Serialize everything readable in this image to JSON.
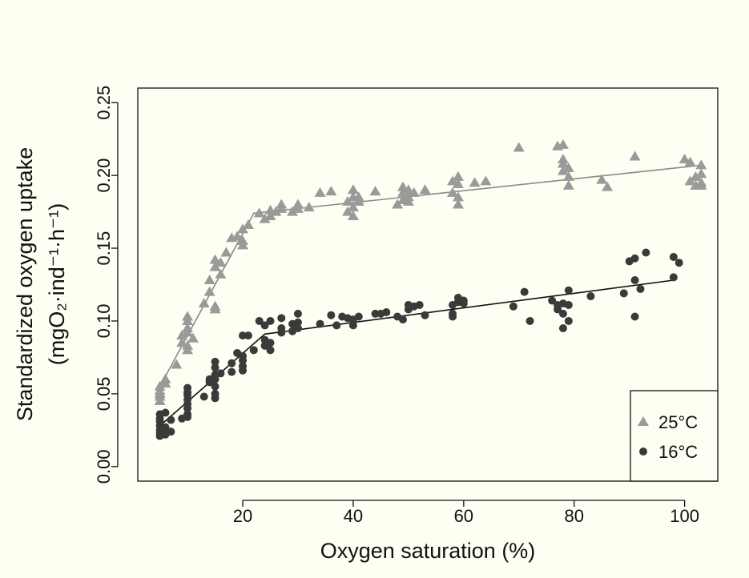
{
  "chart_data": {
    "type": "scatter",
    "xlabel": "Oxygen saturation (%)",
    "ylabel_line1": "Standardized oxygen uptake",
    "ylabel_line2": "(mgO₂·ind⁻¹·h⁻¹)",
    "xlim": [
      1,
      106
    ],
    "ylim": [
      -0.01,
      0.26
    ],
    "x_ticks": [
      20,
      40,
      60,
      80,
      100
    ],
    "y_ticks": [
      "0.00",
      "0.05",
      "0.10",
      "0.15",
      "0.20",
      "0.25"
    ],
    "legend_position": "bottom-right",
    "grid": false,
    "series": [
      {
        "name": "25°C",
        "marker": "triangle",
        "color": "#9a9a9a",
        "points": [
          [
            5,
            0.048
          ],
          [
            5,
            0.05
          ],
          [
            5,
            0.052
          ],
          [
            5,
            0.055
          ],
          [
            6,
            0.057
          ],
          [
            6,
            0.06
          ],
          [
            5,
            0.045
          ],
          [
            8,
            0.07
          ],
          [
            9,
            0.085
          ],
          [
            9,
            0.09
          ],
          [
            10,
            0.08
          ],
          [
            10,
            0.092
          ],
          [
            10,
            0.095
          ],
          [
            10,
            0.1
          ],
          [
            10,
            0.103
          ],
          [
            11,
            0.088
          ],
          [
            10,
            0.083
          ],
          [
            13,
            0.112
          ],
          [
            14,
            0.12
          ],
          [
            14,
            0.128
          ],
          [
            15,
            0.137
          ],
          [
            15,
            0.142
          ],
          [
            15,
            0.108
          ],
          [
            15,
            0.11
          ],
          [
            16,
            0.14
          ],
          [
            16,
            0.132
          ],
          [
            17,
            0.147
          ],
          [
            18,
            0.157
          ],
          [
            19,
            0.158
          ],
          [
            20,
            0.155
          ],
          [
            20,
            0.152
          ],
          [
            20,
            0.163
          ],
          [
            21,
            0.166
          ],
          [
            23,
            0.174
          ],
          [
            24,
            0.17
          ],
          [
            25,
            0.172
          ],
          [
            25,
            0.176
          ],
          [
            26,
            0.175
          ],
          [
            27,
            0.177
          ],
          [
            27,
            0.18
          ],
          [
            29,
            0.175
          ],
          [
            30,
            0.177
          ],
          [
            30,
            0.18
          ],
          [
            32,
            0.178
          ],
          [
            34,
            0.188
          ],
          [
            36,
            0.189
          ],
          [
            39,
            0.182
          ],
          [
            39,
            0.175
          ],
          [
            40,
            0.172
          ],
          [
            40,
            0.178
          ],
          [
            40,
            0.185
          ],
          [
            40,
            0.19
          ],
          [
            41,
            0.185
          ],
          [
            41,
            0.182
          ],
          [
            44,
            0.189
          ],
          [
            48,
            0.18
          ],
          [
            49,
            0.183
          ],
          [
            49,
            0.188
          ],
          [
            49,
            0.192
          ],
          [
            50,
            0.182
          ],
          [
            50,
            0.185
          ],
          [
            50,
            0.19
          ],
          [
            51,
            0.188
          ],
          [
            53,
            0.19
          ],
          [
            58,
            0.188
          ],
          [
            58,
            0.196
          ],
          [
            59,
            0.199
          ],
          [
            59,
            0.194
          ],
          [
            59,
            0.185
          ],
          [
            59,
            0.18
          ],
          [
            62,
            0.195
          ],
          [
            64,
            0.196
          ],
          [
            70,
            0.219
          ],
          [
            77,
            0.22
          ],
          [
            78,
            0.221
          ],
          [
            78,
            0.211
          ],
          [
            78,
            0.208
          ],
          [
            78,
            0.203
          ],
          [
            79,
            0.205
          ],
          [
            79,
            0.199
          ],
          [
            79,
            0.193
          ],
          [
            85,
            0.197
          ],
          [
            86,
            0.192
          ],
          [
            91,
            0.213
          ],
          [
            100,
            0.211
          ],
          [
            101,
            0.209
          ],
          [
            101,
            0.196
          ],
          [
            102,
            0.193
          ],
          [
            102,
            0.199
          ],
          [
            103,
            0.195
          ],
          [
            103,
            0.193
          ],
          [
            103,
            0.207
          ],
          [
            103,
            0.201
          ]
        ]
      },
      {
        "name": "16°C",
        "marker": "circle",
        "color": "#3a3a3a",
        "points": [
          [
            5,
            0.021
          ],
          [
            5,
            0.023
          ],
          [
            5,
            0.025
          ],
          [
            5,
            0.028
          ],
          [
            5,
            0.031
          ],
          [
            5,
            0.033
          ],
          [
            5,
            0.036
          ],
          [
            6,
            0.022
          ],
          [
            6,
            0.027
          ],
          [
            6,
            0.037
          ],
          [
            7,
            0.024
          ],
          [
            7,
            0.032
          ],
          [
            9,
            0.033
          ],
          [
            10,
            0.034
          ],
          [
            10,
            0.036
          ],
          [
            10,
            0.04
          ],
          [
            10,
            0.043
          ],
          [
            10,
            0.046
          ],
          [
            10,
            0.049
          ],
          [
            10,
            0.051
          ],
          [
            10,
            0.054
          ],
          [
            13,
            0.048
          ],
          [
            14,
            0.058
          ],
          [
            14,
            0.06
          ],
          [
            15,
            0.047
          ],
          [
            15,
            0.05
          ],
          [
            15,
            0.055
          ],
          [
            15,
            0.06
          ],
          [
            15,
            0.063
          ],
          [
            15,
            0.068
          ],
          [
            15,
            0.072
          ],
          [
            16,
            0.064
          ],
          [
            18,
            0.065
          ],
          [
            18,
            0.071
          ],
          [
            19,
            0.078
          ],
          [
            20,
            0.066
          ],
          [
            20,
            0.069
          ],
          [
            20,
            0.073
          ],
          [
            20,
            0.076
          ],
          [
            20,
            0.09
          ],
          [
            21,
            0.09
          ],
          [
            22,
            0.08
          ],
          [
            23,
            0.1
          ],
          [
            24,
            0.097
          ],
          [
            24,
            0.087
          ],
          [
            24,
            0.083
          ],
          [
            25,
            0.08
          ],
          [
            25,
            0.085
          ],
          [
            25,
            0.1
          ],
          [
            27,
            0.092
          ],
          [
            27,
            0.095
          ],
          [
            27,
            0.102
          ],
          [
            29,
            0.093
          ],
          [
            29,
            0.098
          ],
          [
            30,
            0.095
          ],
          [
            30,
            0.099
          ],
          [
            30,
            0.105
          ],
          [
            34,
            0.098
          ],
          [
            36,
            0.104
          ],
          [
            37,
            0.097
          ],
          [
            38,
            0.103
          ],
          [
            39,
            0.102
          ],
          [
            40,
            0.101
          ],
          [
            40,
            0.097
          ],
          [
            41,
            0.103
          ],
          [
            44,
            0.105
          ],
          [
            45,
            0.105
          ],
          [
            46,
            0.106
          ],
          [
            48,
            0.103
          ],
          [
            49,
            0.101
          ],
          [
            50,
            0.108
          ],
          [
            50,
            0.111
          ],
          [
            51,
            0.11
          ],
          [
            52,
            0.111
          ],
          [
            53,
            0.104
          ],
          [
            58,
            0.103
          ],
          [
            58,
            0.105
          ],
          [
            58,
            0.111
          ],
          [
            59,
            0.113
          ],
          [
            59,
            0.116
          ],
          [
            60,
            0.112
          ],
          [
            60,
            0.114
          ],
          [
            69,
            0.11
          ],
          [
            71,
            0.12
          ],
          [
            72,
            0.1
          ],
          [
            76,
            0.114
          ],
          [
            77,
            0.108
          ],
          [
            77,
            0.111
          ],
          [
            78,
            0.112
          ],
          [
            78,
            0.095
          ],
          [
            78,
            0.105
          ],
          [
            79,
            0.111
          ],
          [
            79,
            0.1
          ],
          [
            79,
            0.121
          ],
          [
            83,
            0.117
          ],
          [
            89,
            0.119
          ],
          [
            90,
            0.141
          ],
          [
            91,
            0.143
          ],
          [
            91,
            0.103
          ],
          [
            91,
            0.128
          ],
          [
            92,
            0.122
          ],
          [
            93,
            0.147
          ],
          [
            98,
            0.13
          ],
          [
            98,
            0.144
          ],
          [
            99,
            0.14
          ]
        ]
      }
    ],
    "fit_lines": [
      {
        "series": "25°C",
        "color": "#8a8a8a",
        "points": [
          [
            5,
            0.055
          ],
          [
            22,
            0.174
          ],
          [
            103,
            0.207
          ]
        ]
      },
      {
        "series": "16°C",
        "color": "#111111",
        "points": [
          [
            5,
            0.028
          ],
          [
            24,
            0.091
          ],
          [
            98,
            0.128
          ]
        ]
      }
    ]
  }
}
